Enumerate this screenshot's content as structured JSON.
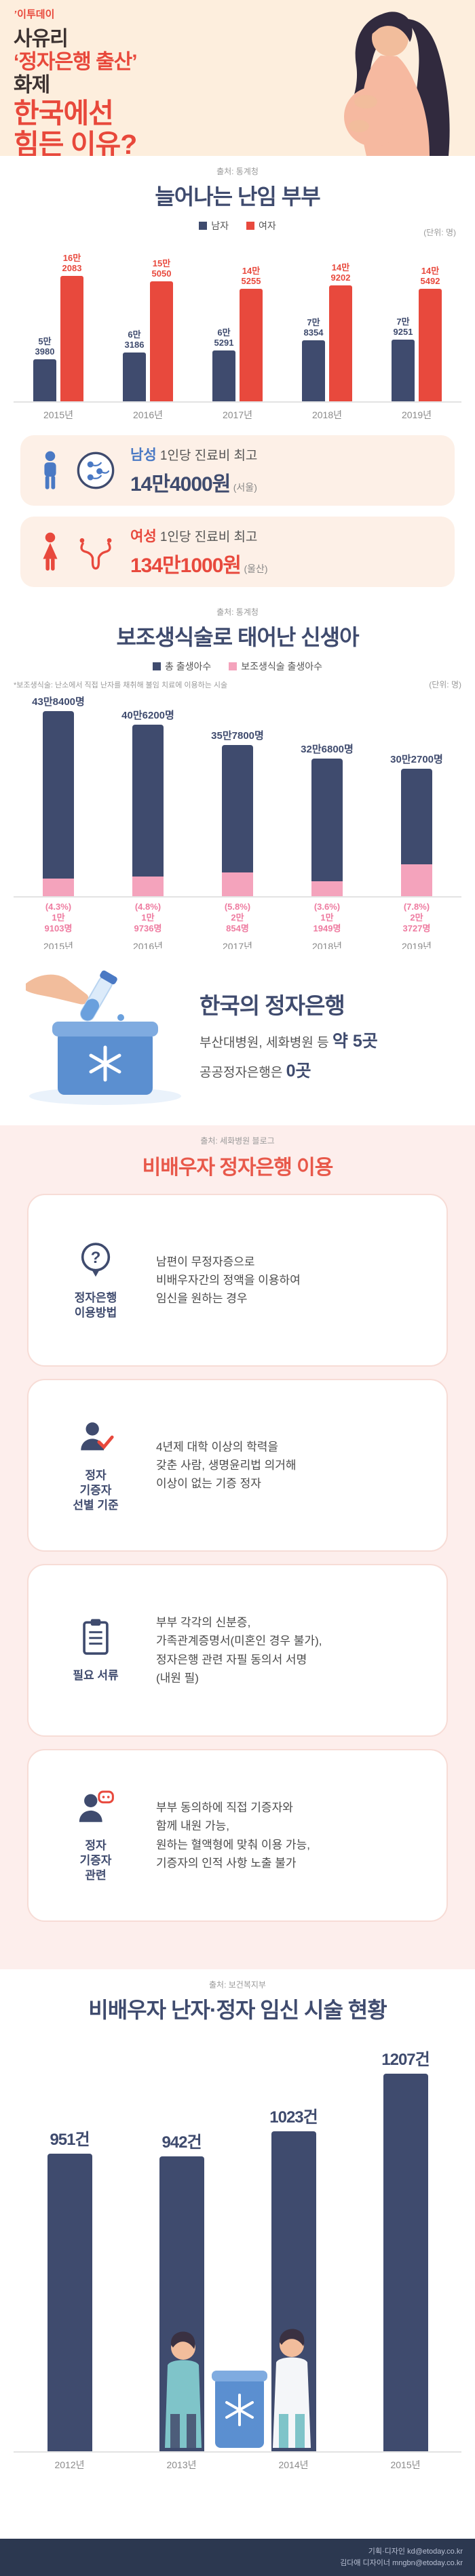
{
  "colors": {
    "accent_red": "#e8493d",
    "navy": "#3f4b6e",
    "pink_bar": "#f4a3bc",
    "pink_label": "#ee7ba0",
    "header_cream": "#fdeedd",
    "usage_bg": "#fdeeec",
    "footer_navy": "#2c3850",
    "blue": "#4a79c4"
  },
  "header": {
    "logo_mark": "’",
    "logo": "이투데이",
    "title": [
      {
        "text": "사유리",
        "style": "t-dark"
      },
      {
        "text": "‘정자은행 출산’",
        "style": "t-red"
      },
      {
        "text": "화제",
        "style": "t-dark"
      },
      {
        "text": "한국에선",
        "style": "t-red t-big"
      },
      {
        "text": "힘든 이유?",
        "style": "t-red t-big"
      }
    ]
  },
  "chart_data": [
    {
      "id": "infertile-couples",
      "type": "bar",
      "title": "늘어나는 난임 부부",
      "source": "출처: 통계청",
      "unit": "(단위: 명)",
      "legend_position": "top",
      "grid": false,
      "categories": [
        "2015년",
        "2016년",
        "2017년",
        "2018년",
        "2019년"
      ],
      "series": [
        {
          "name": "남자",
          "color": "#3f4b6e",
          "values": [
            53980,
            63186,
            65291,
            78354,
            79251
          ],
          "labels": [
            "5만\n3980",
            "6만\n3186",
            "6만\n5291",
            "7만\n8354",
            "7만\n9251"
          ]
        },
        {
          "name": "여자",
          "color": "#e8493d",
          "values": [
            162083,
            155050,
            145255,
            149202,
            145492
          ],
          "labels": [
            "16만\n2083",
            "15만\n5050",
            "14만\n5255",
            "14만\n9202",
            "14만\n5492"
          ]
        }
      ],
      "ymax": 175000
    },
    {
      "id": "assisted-reproduction-births",
      "type": "bar",
      "title": "보조생식술로 태어난 신생아",
      "source": "출처: 통계청",
      "note": "*보조생식술: 난소에서 직접 난자를 채취해 불임 치료에 이용하는 시술",
      "unit": "(단위: 명)",
      "legend": [
        {
          "label": "총 출생아수",
          "color": "#3f4b6e"
        },
        {
          "label": "보조생식술 출생아수",
          "color": "#f4a3bc"
        }
      ],
      "categories": [
        "2015년",
        "2016년",
        "2017년",
        "2018년",
        "2019년"
      ],
      "totals": [
        438400,
        406200,
        357800,
        326800,
        302700
      ],
      "total_labels": [
        "43만8400명",
        "40만6200명",
        "35만7800명",
        "32만6800명",
        "30만2700명"
      ],
      "assisted": [
        19103,
        19736,
        20854,
        11949,
        23727
      ],
      "assisted_labels": [
        "(4.3%)\n1만\n9103명",
        "(4.8%)\n1만\n9736명",
        "(5.8%)\n2만\n854명",
        "(3.6%)\n1만\n1949명",
        "(7.8%)\n2만\n3727명"
      ],
      "ymax": 450000
    },
    {
      "id": "non-spouse-procedures",
      "type": "bar",
      "title": "비배우자 난자·정자 임신 시술 현황",
      "source": "출처: 보건복지부",
      "bar_color": "#3f4b6e",
      "categories": [
        "2012년",
        "2013년",
        "2014년",
        "2015년"
      ],
      "values": [
        951,
        942,
        1023,
        1207
      ],
      "labels": [
        "951건",
        "942건",
        "1023건",
        "1207건"
      ],
      "ymax": 1300
    }
  ],
  "cost_cards": [
    {
      "gender": "남성",
      "desc": "1인당 진료비 최고",
      "amount": "14만4000원",
      "region": "(서울)"
    },
    {
      "gender": "여성",
      "desc": "1인당 진료비 최고",
      "amount": "134만1000원",
      "region": "(울산)"
    }
  ],
  "sperm_bank": {
    "title": "한국의 정자은행",
    "line1_prefix": "부산대병원, 세화병원 등 ",
    "line1_strong": "약 5곳",
    "line2_prefix": "공공정자은행은 ",
    "line2_strong": "0곳"
  },
  "usage": {
    "source": "출처: 세화병원 블로그",
    "title": "비배우자 정자은행 이용",
    "rows": [
      {
        "label": "정자은행\n이용방법",
        "text": "남편이 무정자증으로\n비배우자간의 정액을 이용하여\n임신을 원하는 경우"
      },
      {
        "label": "정자\n기증자\n선별 기준",
        "text": "4년제 대학 이상의 학력을\n갖춘 사람, 생명윤리법 의거해\n이상이 없는 기증 정자"
      },
      {
        "label": "필요 서류",
        "text": "부부 각각의 신분증,\n가족관계증명서(미혼인 경우 불가),\n정자은행 관련 자필 동의서 서명\n(내원 필)"
      },
      {
        "label": "정자\n기증자\n관련",
        "text": "부부 동의하에 직접 기증자와\n함께 내원 가능,\n원하는 혈액형에 맞춰 이용 가능,\n기증자의 인적 사항 노출 불가"
      }
    ]
  },
  "footer": {
    "line1": "기획·디자인 kd@etoday.co.kr",
    "line2": "김다애 디자이너 mngbn@etoday.co.kr"
  }
}
